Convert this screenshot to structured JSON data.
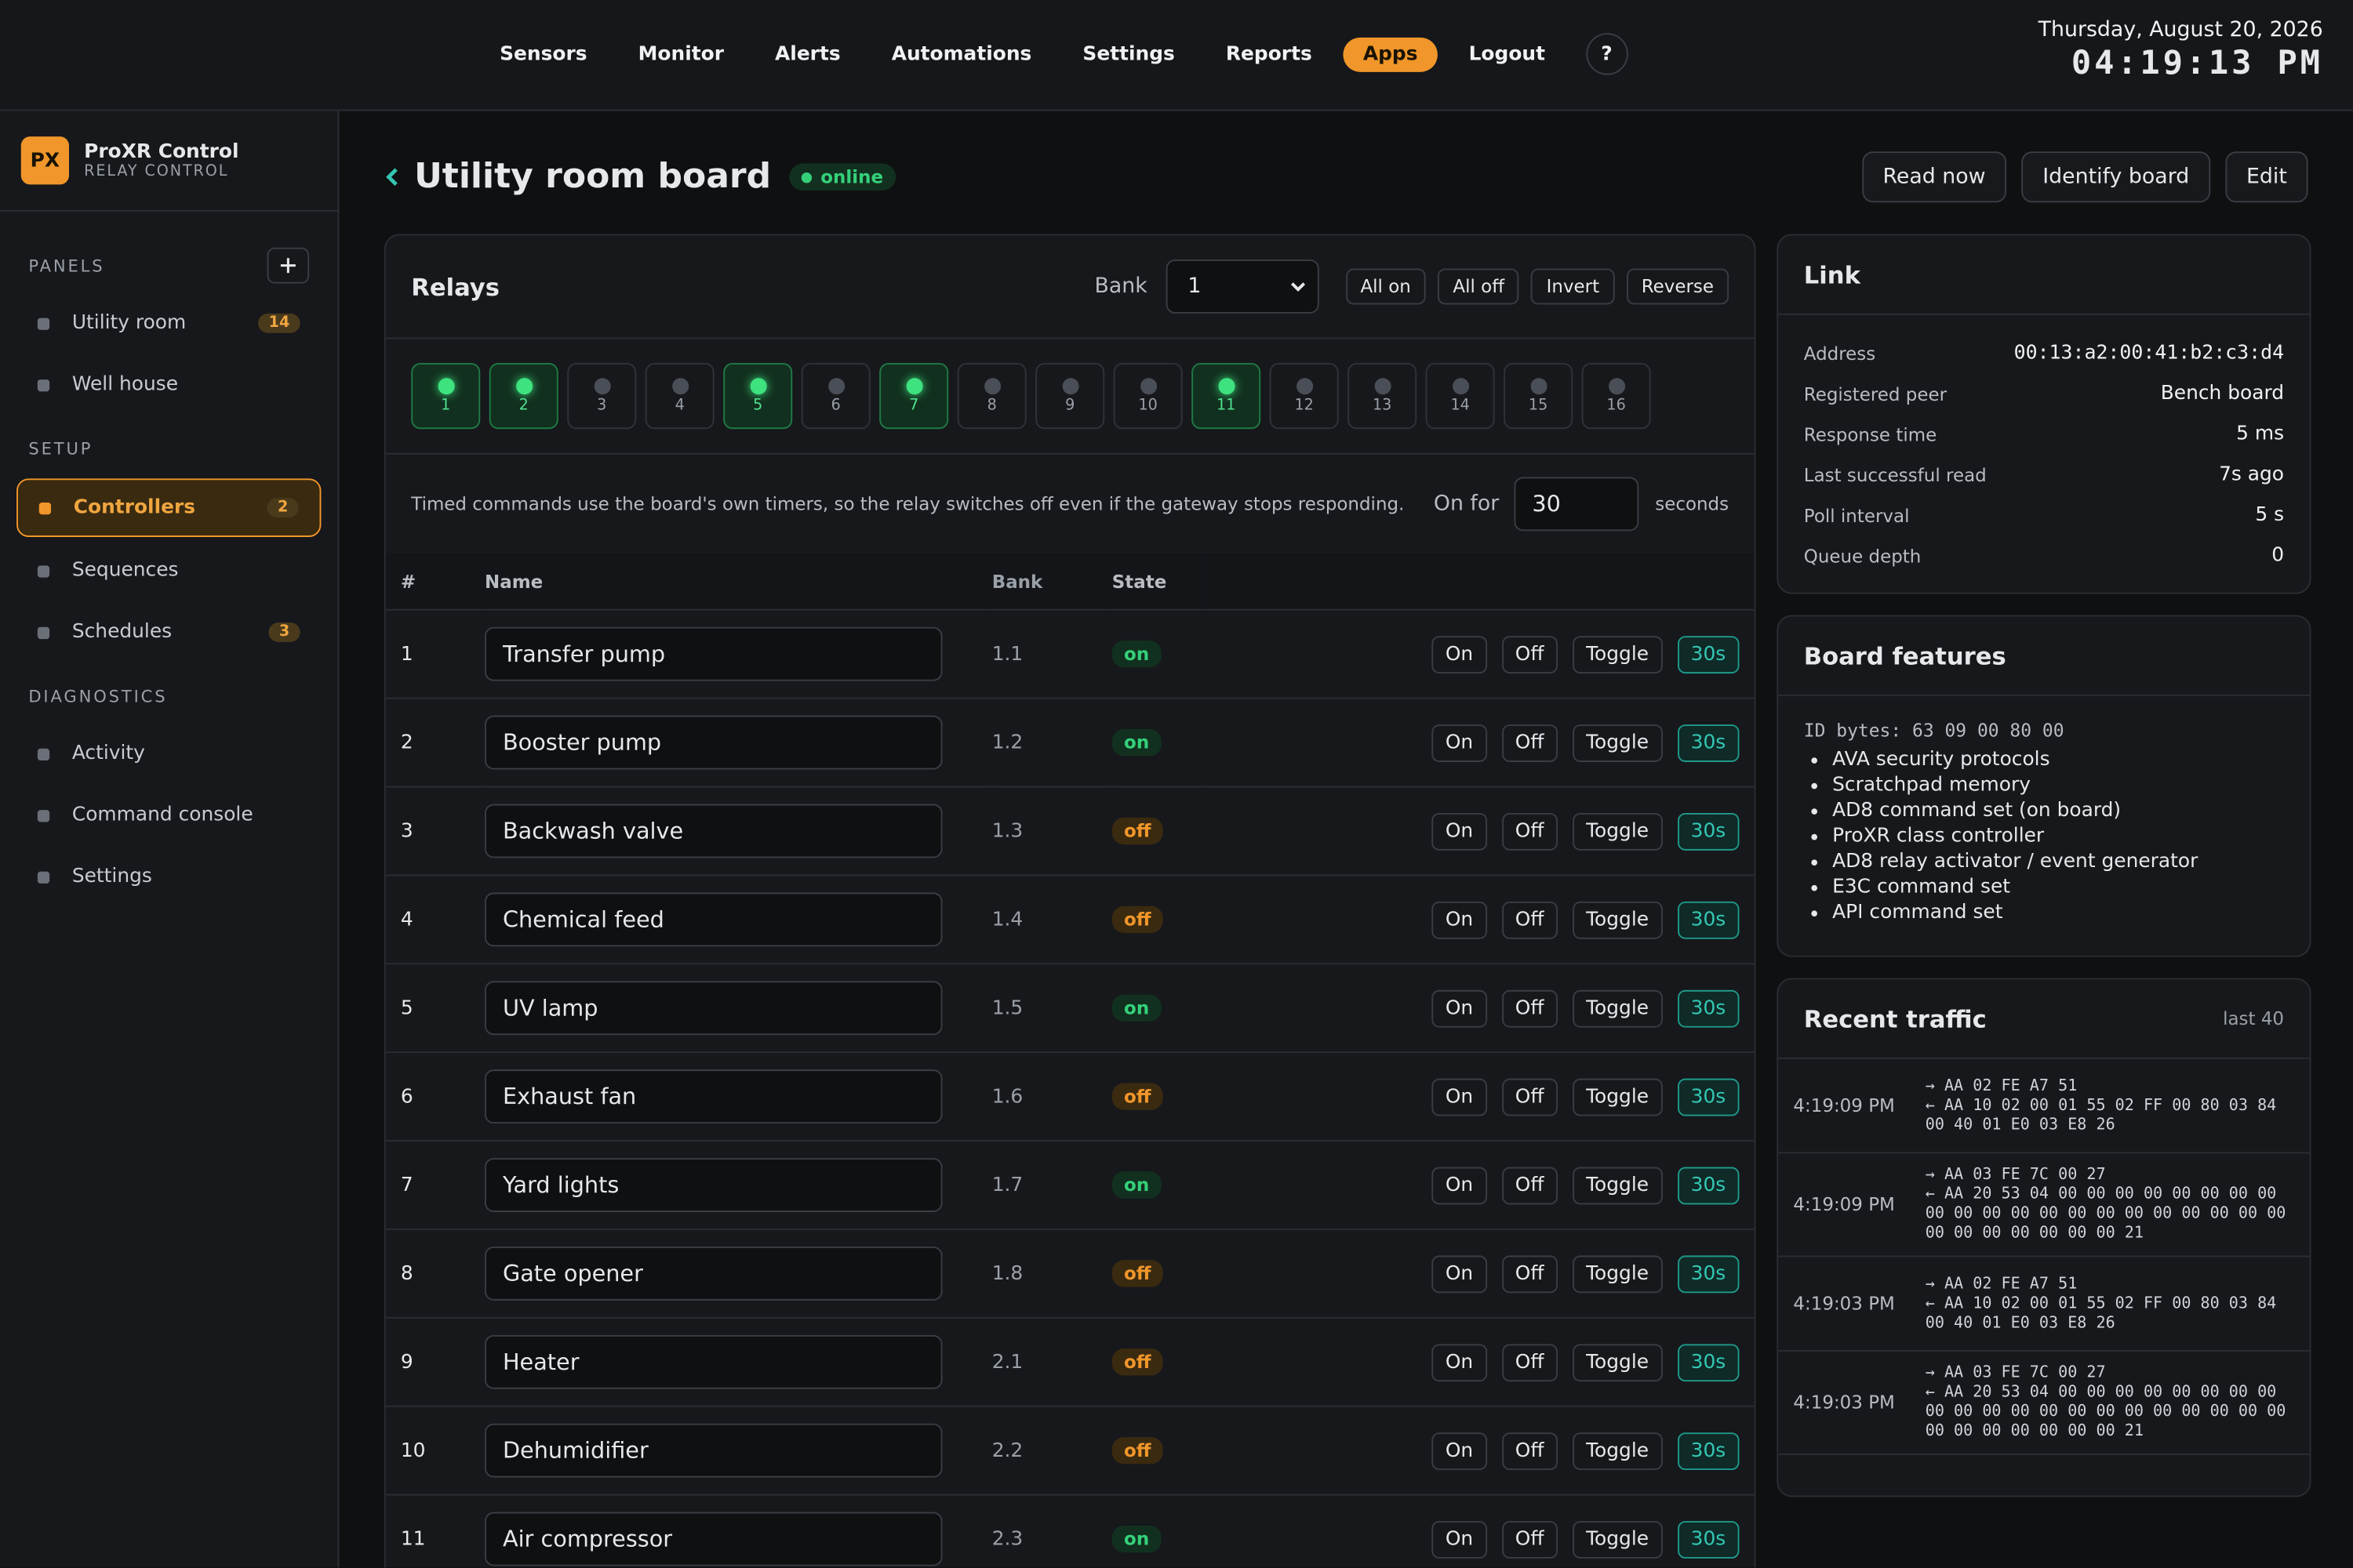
{
  "nav": {
    "items": [
      "Sensors",
      "Monitor",
      "Alerts",
      "Automations",
      "Settings",
      "Reports",
      "Apps",
      "Logout",
      "?"
    ]
  },
  "clock": {
    "date": "Thursday, August 20, 2026",
    "time": "04:19:13 PM"
  },
  "sidebar": {
    "logo": "PX",
    "name": "ProXR Control",
    "subtitle": "RELAY CONTROL",
    "sections": [
      {
        "title": "PANELS",
        "items": [
          {
            "label": "Utility room",
            "badge": 14
          },
          {
            "label": "Well house"
          }
        ]
      },
      {
        "title": "SETUP",
        "items": [
          {
            "label": "Controllers",
            "badge": 2
          },
          {
            "label": "Sequences"
          },
          {
            "label": "Schedules",
            "badge": 3
          }
        ]
      },
      {
        "title": "DIAGNOSTICS",
        "items": [
          {
            "label": "Activity"
          },
          {
            "label": "Command console"
          },
          {
            "label": "Settings"
          }
        ]
      }
    ]
  },
  "header": {
    "title": "Utility room board",
    "status": "online",
    "buttons": [
      "Read now",
      "Identify board",
      "Edit"
    ]
  },
  "relays": {
    "title": "Relays",
    "bank_label": "Bank",
    "bank_value": "1",
    "actions": [
      "All on",
      "All off",
      "Invert",
      "Reverse"
    ],
    "indicators": [
      {
        "label": "1",
        "on": true
      },
      {
        "label": "2",
        "on": true
      },
      {
        "label": "3",
        "on": false
      },
      {
        "label": "4",
        "on": false
      },
      {
        "label": "5",
        "on": true
      },
      {
        "label": "6",
        "on": false
      },
      {
        "label": "7",
        "on": true
      },
      {
        "label": "8",
        "on": false
      },
      {
        "label": "9",
        "on": false
      },
      {
        "label": "10",
        "on": false
      },
      {
        "label": "11",
        "on": true
      },
      {
        "label": "12",
        "on": false
      },
      {
        "label": "13",
        "on": false
      },
      {
        "label": "14",
        "on": false
      },
      {
        "label": "15",
        "on": false
      },
      {
        "label": "16",
        "on": false
      }
    ],
    "timed_note": "Timed commands use the board's own timers, so the relay switches off even if the gateway stops responding.",
    "on_for_label": "On for",
    "on_for_value": 30,
    "seconds_label": "seconds",
    "columns": [
      "#",
      "Name",
      "Bank",
      "State"
    ],
    "row_actions": [
      "On",
      "Off",
      "Toggle",
      "30s"
    ],
    "rows": [
      [
        1,
        "Transfer pump",
        "1.1",
        "on"
      ],
      [
        2,
        "Booster pump",
        "1.2",
        "on"
      ],
      [
        3,
        "Backwash valve",
        "1.3",
        "off"
      ],
      [
        4,
        "Chemical feed",
        "1.4",
        "off"
      ],
      [
        5,
        "UV lamp",
        "1.5",
        "on"
      ],
      [
        6,
        "Exhaust fan",
        "1.6",
        "off"
      ],
      [
        7,
        "Yard lights",
        "1.7",
        "on"
      ],
      [
        8,
        "Gate opener",
        "1.8",
        "off"
      ],
      [
        9,
        "Heater",
        "2.1",
        "off"
      ],
      [
        10,
        "Dehumidifier",
        "2.2",
        "off"
      ],
      [
        11,
        "Air compressor",
        "2.3",
        "on"
      ]
    ]
  },
  "link": {
    "title": "Link",
    "fields": [
      [
        "Address",
        "00:13:a2:00:41:b2:c3:d4"
      ],
      [
        "Registered peer",
        "Bench board"
      ],
      [
        "Response time",
        "5 ms"
      ],
      [
        "Last successful read",
        "7s ago"
      ],
      [
        "Poll interval",
        "5 s"
      ],
      [
        "Queue depth",
        "0"
      ]
    ]
  },
  "features": {
    "title": "Board features",
    "id_bytes": "ID bytes: 63 09 00 80 00",
    "items": [
      "AVA security protocols",
      "Scratchpad memory",
      "AD8 command set (on board)",
      "ProXR class controller",
      "AD8 relay activator / event generator",
      "E3C command set",
      "API command set"
    ]
  },
  "traffic": {
    "title": "Recent traffic",
    "subtitle": "last 40",
    "entries": [
      {
        "time": "4:19:09 PM",
        "lines": [
          "→ AA 02 FE A7 51",
          "← AA 10 02 00 01 55 02 FF 00 80 03 84 00 40 01 E0 03 E8 26"
        ]
      },
      {
        "time": "4:19:09 PM",
        "lines": [
          "→ AA 03 FE 7C 00 27",
          "← AA 20 53 04 00 00 00 00 00 00 00 00 00 00 00 00 00 00 00 00 00 00 00 00 00 00 00 00 00 00 00 00 21"
        ]
      },
      {
        "time": "4:19:03 PM",
        "lines": [
          "→ AA 02 FE A7 51",
          "← AA 10 02 00 01 55 02 FF 00 80 03 84 00 40 01 E0 03 E8 26"
        ]
      },
      {
        "time": "4:19:03 PM",
        "lines": [
          "→ AA 03 FE 7C 00 27",
          "← AA 20 53 04 00 00 00 00 00 00 00 00 00 00 00 00 00 00 00 00 00 00 00 00 00 00 00 00 00 00 00 00 21"
        ]
      }
    ]
  }
}
